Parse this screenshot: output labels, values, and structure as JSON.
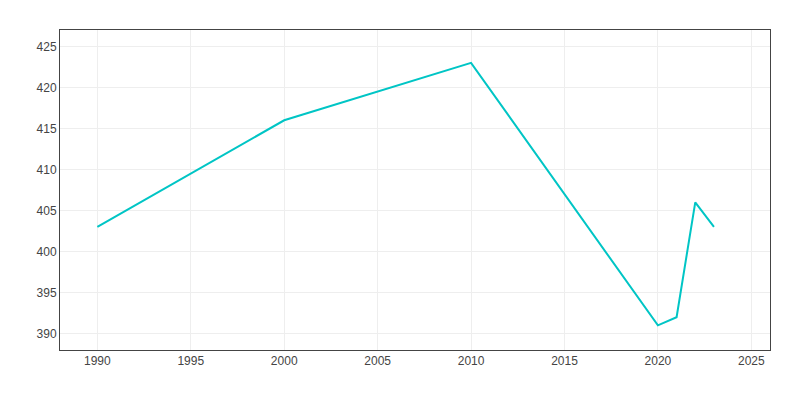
{
  "chart_data": {
    "type": "line",
    "x": [
      1990,
      2000,
      2010,
      2020,
      2021,
      2022,
      2023
    ],
    "values": [
      403,
      416,
      423,
      391,
      392,
      406,
      403
    ],
    "color": "#00C5C5",
    "xlim": [
      1988,
      2026
    ],
    "ylim": [
      388,
      427
    ],
    "xticks": [
      1990,
      1995,
      2000,
      2005,
      2010,
      2015,
      2020,
      2025
    ],
    "yticks": [
      390,
      395,
      400,
      405,
      410,
      415,
      420,
      425
    ],
    "grid": true
  }
}
